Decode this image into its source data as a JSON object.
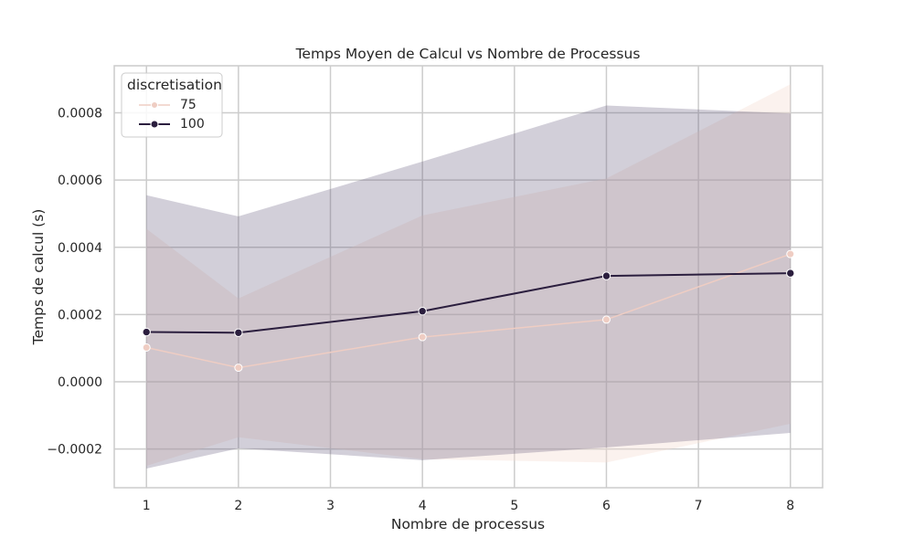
{
  "chart_data": {
    "type": "line",
    "title": "Temps Moyen de Calcul vs Nombre de Processus",
    "xlabel": "Nombre de processus",
    "ylabel": "Temps de calcul (s)",
    "xlim": [
      0.65,
      8.35
    ],
    "ylim": [
      -0.000315,
      0.00094
    ],
    "xticks": [
      1,
      2,
      3,
      4,
      5,
      6,
      7,
      8
    ],
    "xtick_labels": [
      "1",
      "2",
      "3",
      "4",
      "5",
      "6",
      "7",
      "8"
    ],
    "yticks": [
      -0.0002,
      0.0,
      0.0002,
      0.0004,
      0.0006,
      0.0008
    ],
    "ytick_labels": [
      "−0.0002",
      "0.0000",
      "0.0002",
      "0.0004",
      "0.0006",
      "0.0008"
    ],
    "grid": true,
    "legend": {
      "title": "discretisation",
      "placement": "top-left"
    },
    "series": [
      {
        "name": "75",
        "color": "#efcdc3",
        "fill_color": "#f3d9cf",
        "x": [
          1,
          2,
          4,
          6,
          8
        ],
        "y": [
          0.000102,
          4.2e-05,
          0.000133,
          0.000185,
          0.00038
        ],
        "ci_upper": [
          0.000455,
          0.000248,
          0.000495,
          0.000605,
          0.000885
        ],
        "ci_lower": [
          -0.00025,
          -0.000165,
          -0.00023,
          -0.00024,
          -0.000125
        ]
      },
      {
        "name": "100",
        "color": "#2b1e3e",
        "fill_color": "#5c5475",
        "x": [
          1,
          2,
          4,
          6,
          8
        ],
        "y": [
          0.000148,
          0.000146,
          0.00021,
          0.000315,
          0.000323
        ],
        "ci_upper": [
          0.000555,
          0.000492,
          0.000655,
          0.000822,
          0.000798
        ],
        "ci_lower": [
          -0.000258,
          -0.000198,
          -0.000233,
          -0.000195,
          -0.000152
        ]
      }
    ]
  }
}
